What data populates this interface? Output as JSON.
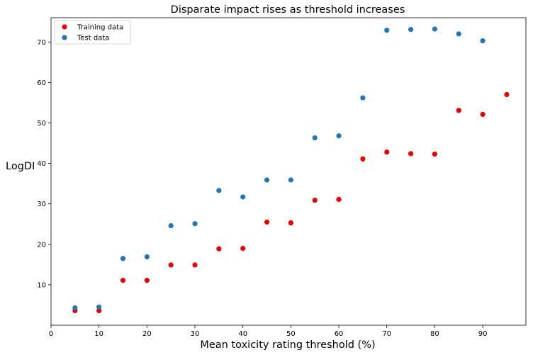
{
  "chart_data": {
    "type": "scatter",
    "title": "Disparate impact rises as threshold increases",
    "xlabel": "Mean toxicity rating threshold (%)",
    "ylabel": "LogDI",
    "xlim": [
      0,
      99
    ],
    "ylim": [
      0,
      76
    ],
    "xticks": [
      0,
      10,
      20,
      30,
      40,
      50,
      60,
      70,
      80,
      90
    ],
    "yticks": [
      10,
      20,
      30,
      40,
      50,
      60,
      70
    ],
    "grid": false,
    "legend_position": "top-left",
    "series": [
      {
        "name": "Training data",
        "color": "#ee0000",
        "x": [
          5,
          10,
          15,
          20,
          25,
          30,
          35,
          40,
          45,
          50,
          55,
          60,
          65,
          70,
          75,
          80,
          85,
          90,
          95
        ],
        "y": [
          3.6,
          3.6,
          11.1,
          11.1,
          14.9,
          14.9,
          18.9,
          19.0,
          25.5,
          25.3,
          30.9,
          31.1,
          41.1,
          42.8,
          42.4,
          42.3,
          53.1,
          52.1,
          57.0
        ]
      },
      {
        "name": "Test data",
        "color": "#1f77b4",
        "x": [
          5,
          10,
          15,
          20,
          25,
          30,
          35,
          40,
          45,
          50,
          55,
          60,
          65,
          70,
          75,
          80,
          85,
          90
        ],
        "y": [
          4.3,
          4.5,
          16.5,
          16.9,
          24.6,
          25.1,
          33.3,
          31.7,
          35.9,
          35.9,
          46.3,
          46.8,
          56.2,
          72.9,
          73.1,
          73.2,
          72.0,
          70.3
        ]
      }
    ]
  }
}
